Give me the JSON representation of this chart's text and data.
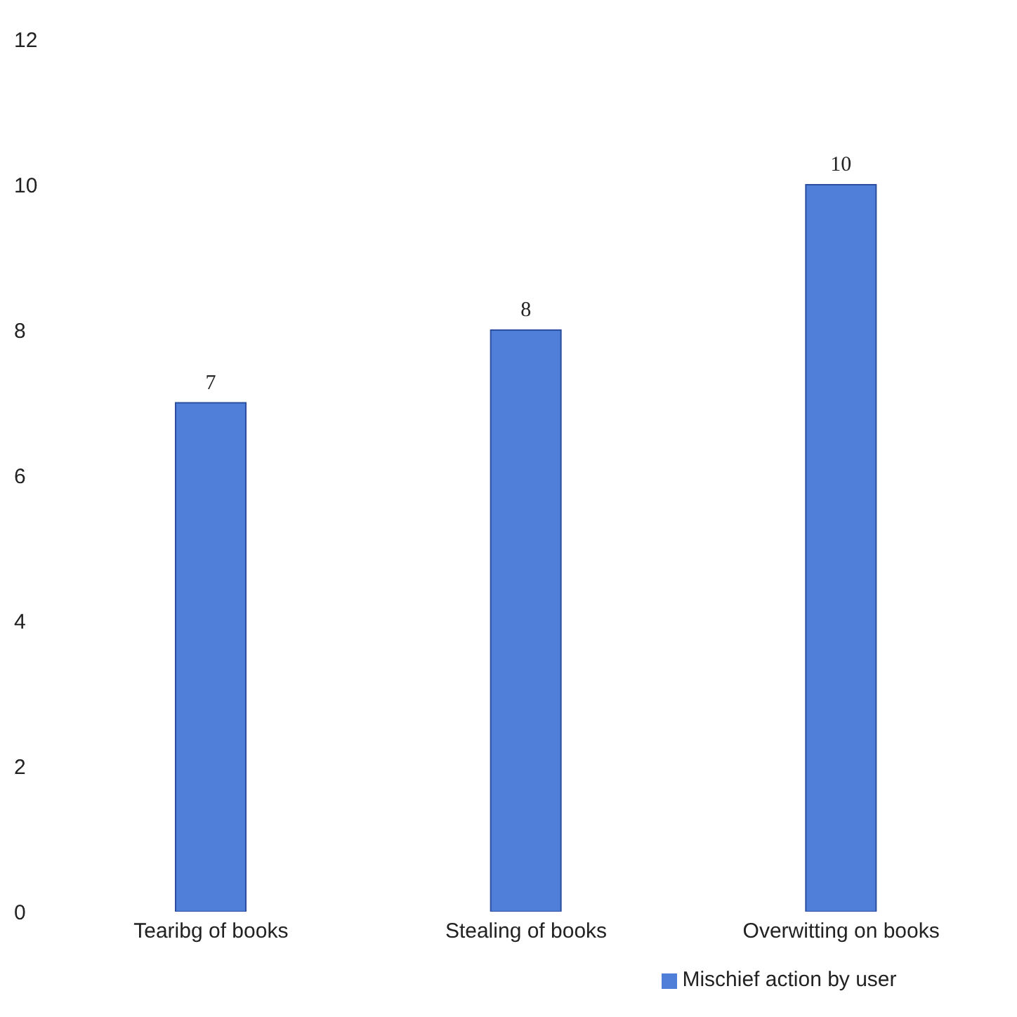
{
  "chart_data": {
    "type": "bar",
    "categories": [
      "Tearibg of books",
      "Stealing of books",
      "Overwitting on books"
    ],
    "series": [
      {
        "name": "Mischief action by user",
        "color": "#4f7fd8",
        "values": [
          7,
          8,
          10
        ]
      }
    ],
    "ylim": [
      0,
      12
    ],
    "yticks": [
      0,
      2,
      4,
      6,
      8,
      10,
      12
    ],
    "grid": false,
    "data_labels": true,
    "legend": "bottom"
  }
}
